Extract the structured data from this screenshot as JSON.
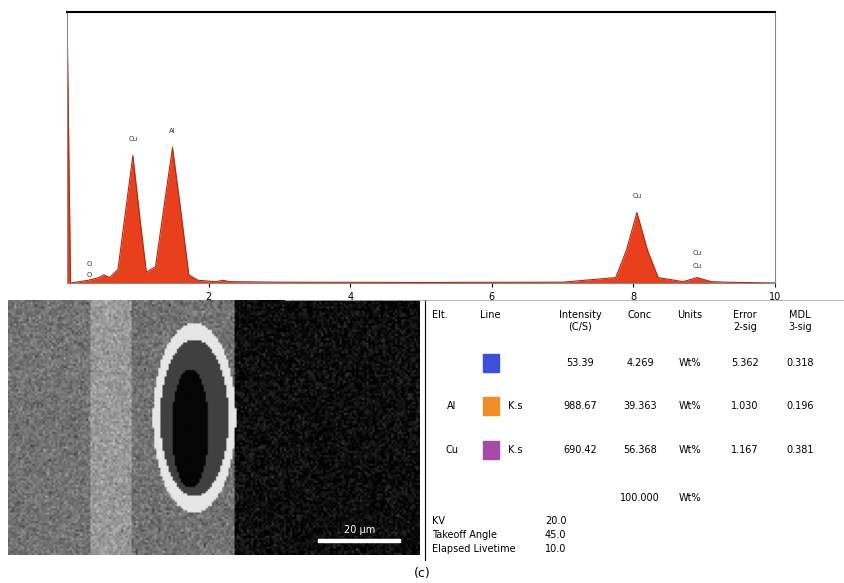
{
  "chart_data": {
    "type": "area",
    "x": [
      0,
      0.05,
      0.3,
      0.45,
      0.52,
      0.6,
      0.72,
      0.82,
      0.93,
      1.02,
      1.12,
      1.25,
      1.38,
      1.49,
      1.6,
      1.72,
      1.85,
      2.1,
      2.2,
      2.3,
      3,
      5,
      7,
      7.75,
      7.9,
      8.05,
      8.2,
      8.35,
      8.7,
      8.9,
      9.1,
      9.3,
      10
    ],
    "values": [
      100,
      0,
      1,
      2,
      3,
      2,
      5,
      25,
      47,
      26,
      4,
      6,
      30,
      50,
      28,
      3,
      1,
      0.5,
      1,
      0.5,
      0.3,
      0.2,
      0.3,
      2,
      12,
      26,
      12,
      2,
      0.5,
      2,
      0.5,
      0.3,
      0
    ],
    "color": "#e8401c",
    "xlim": [
      0,
      10
    ],
    "xticks": [
      2,
      4,
      6,
      8,
      10
    ],
    "ylim": [
      0,
      100
    ],
    "tick_labels": "x",
    "annotations": [
      {
        "text": "O",
        "x": 0.32,
        "y": 6
      },
      {
        "text": "O",
        "x": 0.32,
        "y": 2
      },
      {
        "text": "Cu",
        "x": 0.93,
        "y": 52
      },
      {
        "text": "Al",
        "x": 1.49,
        "y": 55
      },
      {
        "text": "Cu",
        "x": 8.05,
        "y": 31
      },
      {
        "text": "Cu",
        "x": 8.9,
        "y": 10
      },
      {
        "text": "Cu",
        "x": 8.9,
        "y": 5
      }
    ]
  },
  "image": {
    "scale_bar": "20 μm"
  },
  "table": {
    "header": [
      "Elt.",
      "Line",
      "Intensity\n(C/S)",
      "Conc",
      "Units",
      "Error\n2-sig",
      "MDL\n3-sig"
    ],
    "rows": [
      {
        "color": "#3b4fd8",
        "cells": [
          "",
          "",
          "53.39",
          "4.269",
          "Wt%",
          "5.362",
          "0.318"
        ]
      },
      {
        "color": "#f28c28",
        "cells": [
          "Al",
          "K.s",
          "988.67",
          "39.363",
          "Wt%",
          "1.030",
          "0.196"
        ]
      },
      {
        "color": "#a64ca6",
        "cells": [
          "Cu",
          "K.s",
          "690.42",
          "56.368",
          "Wt%",
          "1.167",
          "0.381"
        ]
      },
      {
        "color": null,
        "cells": [
          "",
          "",
          "",
          "100.000",
          "Wt%",
          "",
          ""
        ]
      }
    ],
    "footer": [
      [
        "KV",
        "20.0"
      ],
      [
        "Takeoff Angle",
        "45.0"
      ],
      [
        "Elapsed Livetime",
        "10.0"
      ]
    ]
  },
  "caption": "(c)"
}
